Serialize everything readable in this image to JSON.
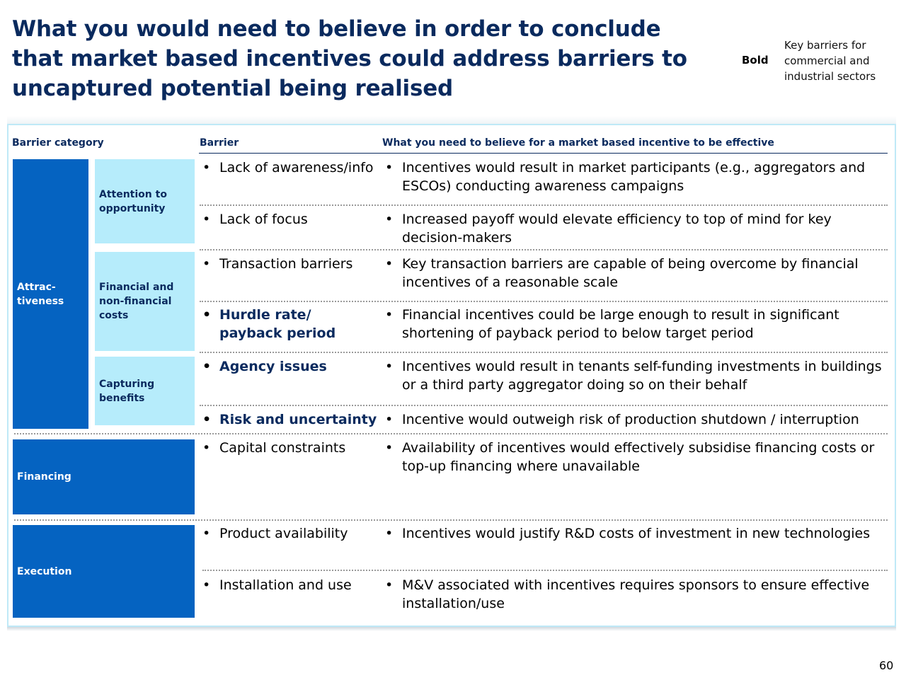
{
  "title": "What you would need to believe in order to conclude that market based incentives could address barriers to uncaptured potential being realised",
  "legend": {
    "bold_label": "Bold",
    "description": "Key barriers for commercial and industrial sectors"
  },
  "headers": {
    "category": "Barrier category",
    "barrier": "Barrier",
    "belief": "What you need to believe for a market based incentive to be effective"
  },
  "categories": {
    "attractiveness": "Attrac-tiveness",
    "attention": "Attention to opportunity",
    "financial": "Financial and non-financial costs",
    "capturing": "Capturing benefits",
    "financing": "Financing",
    "execution": "Execution"
  },
  "rows": [
    {
      "barrier": "Lack of awareness/info",
      "key": false,
      "belief": "Incentives would result in market participants (e.g., aggregators and ESCOs) conducting awareness campaigns"
    },
    {
      "barrier": "Lack of focus",
      "key": false,
      "belief": "Increased payoff would elevate efficiency to top of mind for key decision-makers"
    },
    {
      "barrier": "Transaction barriers",
      "key": false,
      "belief": "Key transaction barriers are capable of being overcome by financial incentives of a reasonable scale"
    },
    {
      "barrier": "Hurdle rate/ payback period",
      "key": true,
      "belief": "Financial incentives could be large enough to result in significant shortening of payback period to below target period"
    },
    {
      "barrier": "Agency issues",
      "key": true,
      "belief": "Incentives would result in tenants self-funding investments in buildings or a third party aggregator doing so on their behalf"
    },
    {
      "barrier": "Risk and uncertainty",
      "key": true,
      "belief": "Incentive would outweigh risk of production shutdown / interruption"
    },
    {
      "barrier": "Capital constraints",
      "key": false,
      "belief": "Availability of incentives would effectively subsidise financing costs or top-up financing where unavailable"
    },
    {
      "barrier": "Product availability",
      "key": false,
      "belief": "Incentives would justify R&D costs of investment in new technologies"
    },
    {
      "barrier": "Installation and use",
      "key": false,
      "belief": "M&V associated with incentives requires sponsors to ensure effective installation/use"
    }
  ],
  "bullet": "•",
  "page_number": "60"
}
